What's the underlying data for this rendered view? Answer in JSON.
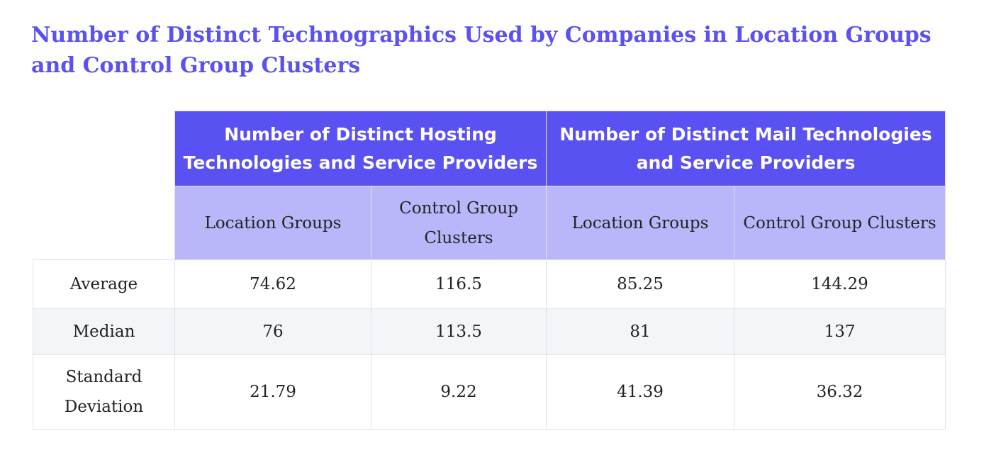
{
  "title": "Number of Distinct Technographics Used by Companies in Location Groups and Control Group Clusters",
  "colors": {
    "accent": "#5a51f2",
    "subheader": "#b9b6f9",
    "title": "#5b50f0"
  },
  "chart_data": {
    "type": "table",
    "title": "Number of Distinct Technographics Used by Companies in Location Groups and Control Group Clusters",
    "column_groups": [
      {
        "label": "Number of Distinct Hosting Technologies and Service Providers",
        "columns": [
          "Location Groups",
          "Control Group Clusters"
        ]
      },
      {
        "label": "Number of Distinct Mail Technologies and Service Providers",
        "columns": [
          "Location Groups",
          "Control Group Clusters"
        ]
      }
    ],
    "rows": [
      {
        "label": "Average",
        "values": [
          "74.62",
          "116.5",
          "85.25",
          "144.29"
        ]
      },
      {
        "label": "Median",
        "values": [
          "76",
          "113.5",
          "81",
          "137"
        ]
      },
      {
        "label": "Standard Deviation",
        "values": [
          "21.79",
          "9.22",
          "41.39",
          "36.32"
        ]
      }
    ]
  }
}
